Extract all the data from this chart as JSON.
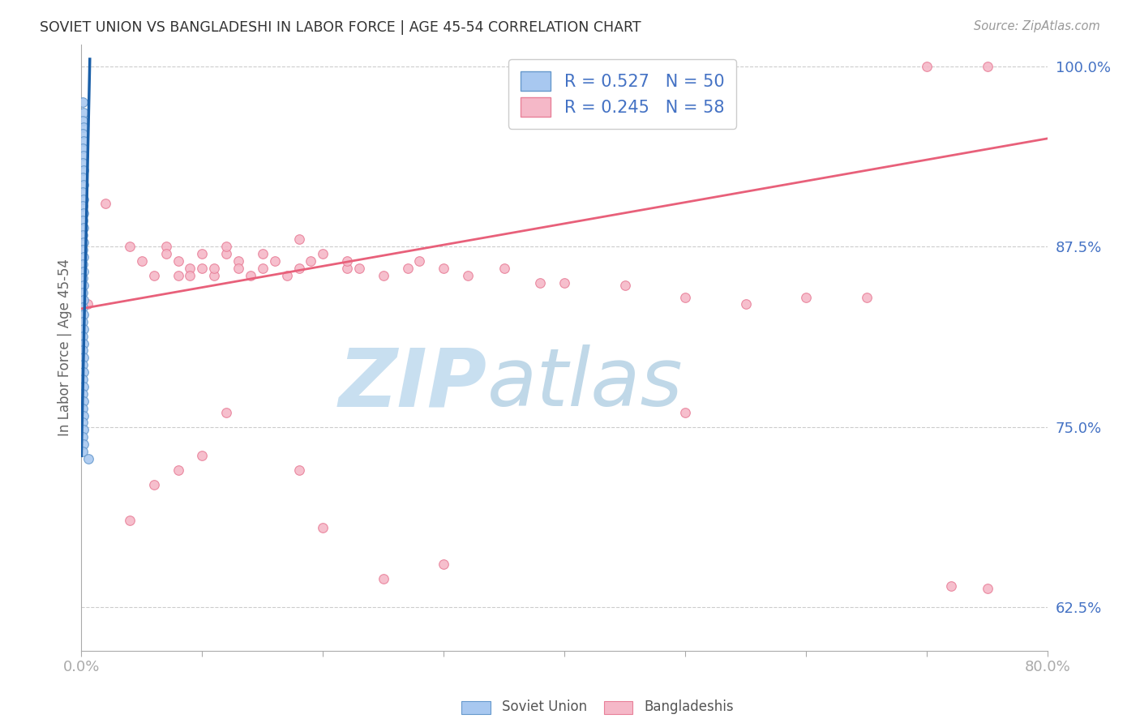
{
  "title": "SOVIET UNION VS BANGLADESHI IN LABOR FORCE | AGE 45-54 CORRELATION CHART",
  "source": "Source: ZipAtlas.com",
  "ylabel": "In Labor Force | Age 45-54",
  "xlim": [
    0.0,
    0.8
  ],
  "ylim": [
    0.595,
    1.015
  ],
  "xticks": [
    0.0,
    0.1,
    0.2,
    0.3,
    0.4,
    0.5,
    0.6,
    0.7,
    0.8
  ],
  "xticklabels": [
    "0.0%",
    "",
    "",
    "",
    "",
    "",
    "",
    "",
    "80.0%"
  ],
  "yticks": [
    0.625,
    0.75,
    0.875,
    1.0
  ],
  "yticklabels": [
    "62.5%",
    "75.0%",
    "87.5%",
    "100.0%"
  ],
  "blue_R": 0.527,
  "blue_N": 50,
  "pink_R": 0.245,
  "pink_N": 58,
  "blue_scatter_x": [
    0.001,
    0.002,
    0.001,
    0.002,
    0.001,
    0.002,
    0.001,
    0.002,
    0.001,
    0.002,
    0.001,
    0.002,
    0.001,
    0.002,
    0.001,
    0.002,
    0.001,
    0.002,
    0.001,
    0.002,
    0.001,
    0.002,
    0.001,
    0.002,
    0.001,
    0.002,
    0.001,
    0.002,
    0.001,
    0.002,
    0.001,
    0.002,
    0.001,
    0.002,
    0.001,
    0.002,
    0.001,
    0.002,
    0.001,
    0.002,
    0.001,
    0.002,
    0.001,
    0.002,
    0.001,
    0.002,
    0.001,
    0.002,
    0.001,
    0.006
  ],
  "blue_scatter_y": [
    0.975,
    0.968,
    0.962,
    0.958,
    0.953,
    0.948,
    0.943,
    0.938,
    0.933,
    0.928,
    0.923,
    0.918,
    0.913,
    0.908,
    0.903,
    0.898,
    0.893,
    0.888,
    0.883,
    0.878,
    0.873,
    0.868,
    0.863,
    0.858,
    0.853,
    0.848,
    0.843,
    0.838,
    0.833,
    0.828,
    0.823,
    0.818,
    0.813,
    0.808,
    0.803,
    0.798,
    0.793,
    0.788,
    0.783,
    0.778,
    0.773,
    0.768,
    0.763,
    0.758,
    0.753,
    0.748,
    0.743,
    0.738,
    0.733,
    0.728
  ],
  "pink_scatter_x": [
    0.005,
    0.02,
    0.04,
    0.05,
    0.06,
    0.07,
    0.07,
    0.08,
    0.08,
    0.09,
    0.09,
    0.1,
    0.1,
    0.11,
    0.11,
    0.12,
    0.12,
    0.13,
    0.13,
    0.14,
    0.15,
    0.15,
    0.16,
    0.17,
    0.18,
    0.18,
    0.19,
    0.2,
    0.22,
    0.22,
    0.23,
    0.25,
    0.27,
    0.28,
    0.3,
    0.32,
    0.35,
    0.38,
    0.4,
    0.45,
    0.5,
    0.5,
    0.55,
    0.6,
    0.65,
    0.7,
    0.72,
    0.75,
    0.18,
    0.2,
    0.08,
    0.12,
    0.1,
    0.06,
    0.04,
    0.3,
    0.25,
    0.75
  ],
  "pink_scatter_y": [
    0.835,
    0.905,
    0.875,
    0.865,
    0.855,
    0.875,
    0.87,
    0.865,
    0.855,
    0.86,
    0.855,
    0.86,
    0.87,
    0.855,
    0.86,
    0.87,
    0.875,
    0.865,
    0.86,
    0.855,
    0.86,
    0.87,
    0.865,
    0.855,
    0.88,
    0.86,
    0.865,
    0.87,
    0.86,
    0.865,
    0.86,
    0.855,
    0.86,
    0.865,
    0.86,
    0.855,
    0.86,
    0.85,
    0.85,
    0.848,
    0.84,
    0.76,
    0.835,
    0.84,
    0.84,
    1.0,
    0.64,
    0.638,
    0.72,
    0.68,
    0.72,
    0.76,
    0.73,
    0.71,
    0.685,
    0.655,
    0.645,
    1.0
  ],
  "blue_color": "#a8c8f0",
  "blue_edge_color": "#6699cc",
  "pink_color": "#f5b8c8",
  "pink_edge_color": "#e88099",
  "blue_line_color": "#1a5fa8",
  "pink_line_color": "#e8607a",
  "watermark_zip": "ZIP",
  "watermark_atlas": "atlas",
  "watermark_color_zip": "#c8dff0",
  "watermark_color_atlas": "#c0d8e8",
  "legend_label_blue": "Soviet Union",
  "legend_label_pink": "Bangladeshis",
  "background_color": "#ffffff",
  "grid_color": "#cccccc",
  "tick_color": "#4472c4",
  "title_color": "#333333",
  "ylabel_color": "#666666",
  "marker_size": 70,
  "blue_trend_x0": 0.0,
  "blue_trend_x1": 0.007,
  "pink_trend_x0": 0.0,
  "pink_trend_x1": 0.8
}
